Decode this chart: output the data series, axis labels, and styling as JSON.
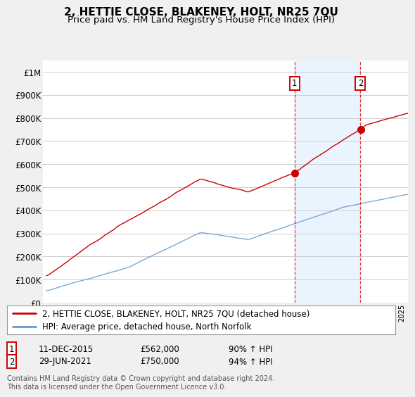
{
  "title": "2, HETTIE CLOSE, BLAKENEY, HOLT, NR25 7QU",
  "subtitle": "Price paid vs. HM Land Registry's House Price Index (HPI)",
  "ylim": [
    0,
    1050000
  ],
  "yticks": [
    0,
    100000,
    200000,
    300000,
    400000,
    500000,
    600000,
    700000,
    800000,
    900000,
    1000000
  ],
  "ytick_labels": [
    "£0",
    "£100K",
    "£200K",
    "£300K",
    "£400K",
    "£500K",
    "£600K",
    "£700K",
    "£800K",
    "£900K",
    "£1M"
  ],
  "sale1_date": 2015.94,
  "sale1_price": 562000,
  "sale1_label": "1",
  "sale2_date": 2021.49,
  "sale2_price": 750000,
  "sale2_label": "2",
  "sale1_text": "11-DEC-2015",
  "sale1_amount": "£562,000",
  "sale1_hpi": "90% ↑ HPI",
  "sale2_text": "29-JUN-2021",
  "sale2_amount": "£750,000",
  "sale2_hpi": "94% ↑ HPI",
  "legend_line1": "2, HETTIE CLOSE, BLAKENEY, HOLT, NR25 7QU (detached house)",
  "legend_line2": "HPI: Average price, detached house, North Norfolk",
  "footer": "Contains HM Land Registry data © Crown copyright and database right 2024.\nThis data is licensed under the Open Government Licence v3.0.",
  "line_color_red": "#cc0000",
  "line_color_blue": "#6699cc",
  "shade_color": "#ddeeff",
  "bg_color": "#f0f0f0",
  "plot_bg": "#ffffff",
  "grid_color": "#cccccc",
  "title_fontsize": 11,
  "subtitle_fontsize": 9.5,
  "axis_fontsize": 8.5,
  "legend_fontsize": 8.5,
  "xtick_fontsize": 7.2
}
